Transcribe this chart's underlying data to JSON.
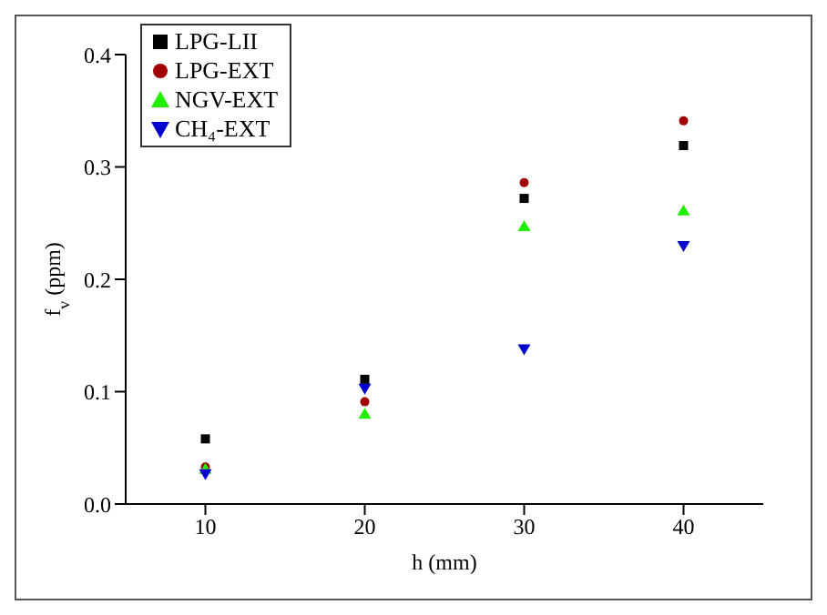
{
  "chart_data": {
    "type": "scatter",
    "xlabel": "h (mm)",
    "ylabel": "f$_{v}$ (ppm)",
    "x": [
      10,
      20,
      30,
      40
    ],
    "series": [
      {
        "name": "LPG-LII",
        "color": "#000000",
        "marker": "square",
        "values": [
          0.058,
          0.111,
          0.272,
          0.319
        ]
      },
      {
        "name": "LPG-EXT",
        "color": "#a00000",
        "marker": "circle",
        "values": [
          0.033,
          0.091,
          0.286,
          0.341
        ]
      },
      {
        "name": "NGV-EXT",
        "color": "#22ee00",
        "marker": "triangle",
        "values": [
          0.031,
          0.08,
          0.247,
          0.261
        ]
      },
      {
        "name": "CH₄-EXT",
        "color": "#0000cc",
        "marker": "triangle-down",
        "values": [
          0.027,
          0.103,
          0.138,
          0.23
        ]
      }
    ],
    "xlim": [
      5,
      45
    ],
    "xticks": [
      10,
      20,
      30,
      40
    ],
    "ylim": [
      0,
      0.4
    ],
    "yticks": [
      {
        "value": 0,
        "label": "0.0"
      },
      {
        "value": 0.1,
        "label": "0.1"
      },
      {
        "value": 0.2,
        "label": "0.2"
      },
      {
        "value": 0.3,
        "label": "0.3"
      },
      {
        "value": 0.4,
        "label": "0.4"
      }
    ],
    "grid": false,
    "legend": "top left"
  }
}
